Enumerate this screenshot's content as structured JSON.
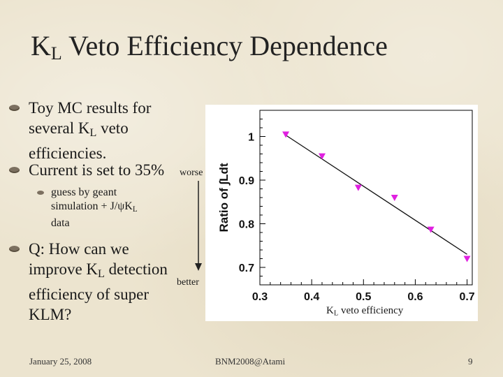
{
  "slide": {
    "title_main": "K",
    "title_sub": "L",
    "title_rest": " Veto Efficiency Dependence",
    "bullets": [
      {
        "lines": [
          "Toy MC results for",
          "several K",
          "L",
          " veto",
          "efficiencies."
        ]
      },
      {
        "text": "Current is set to 35%"
      },
      {
        "lines": [
          "guess by geant",
          "simulation + J/ψK",
          "L",
          "data"
        ]
      },
      {
        "lines": [
          "Q: How can we",
          "improve K",
          "L",
          " detection",
          "efficiency of super",
          "KLM?"
        ]
      }
    ],
    "annotation_worse": "worse",
    "annotation_better": "better",
    "footer_date": "January 25, 2008",
    "footer_center": "BNM2008@Atami",
    "footer_page": "9"
  },
  "chart_data": {
    "type": "scatter",
    "xlabel_main": "K",
    "xlabel_sub": "L",
    "xlabel_rest": " veto efficiency",
    "ylabel": "Ratio of ∫Ldt",
    "x_ticks": [
      "0.3",
      "0.4",
      "0.5",
      "0.6",
      "0.7"
    ],
    "y_ticks": [
      "0.7",
      "0.8",
      "0.9",
      "1"
    ],
    "xlim": [
      0.3,
      0.71
    ],
    "ylim": [
      0.66,
      1.06
    ],
    "series": [
      {
        "marker": "triangle-down",
        "color": "#e020e0",
        "x": [
          0.35,
          0.42,
          0.49,
          0.56,
          0.63,
          0.7
        ],
        "y": [
          1.005,
          0.955,
          0.883,
          0.86,
          0.787,
          0.72
        ]
      }
    ],
    "fit_line": {
      "x": [
        0.35,
        0.7
      ],
      "y": [
        1.003,
        0.73
      ]
    },
    "grid": false,
    "frame_color": "#000000"
  }
}
